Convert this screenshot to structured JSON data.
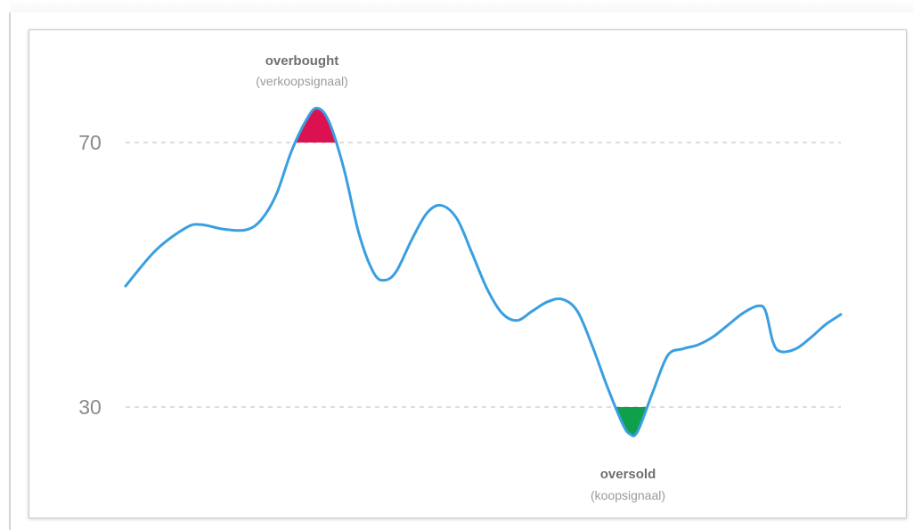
{
  "chart_data": {
    "type": "line",
    "title": "",
    "xlabel": "",
    "ylabel": "",
    "ylim": [
      15,
      80
    ],
    "reference_lines": [
      {
        "value": 70,
        "label": "70"
      },
      {
        "value": 30,
        "label": "30"
      }
    ],
    "series": [
      {
        "values": [
          [
            0,
            48.3
          ],
          [
            4,
            53.7
          ],
          [
            8,
            57.1
          ],
          [
            10,
            57.6
          ],
          [
            13,
            56.9
          ],
          [
            16,
            56.8
          ],
          [
            18,
            58.3
          ],
          [
            20,
            62.1
          ],
          [
            22,
            68.6
          ],
          [
            24,
            73.4
          ],
          [
            25.4,
            75.2
          ],
          [
            27,
            73.2
          ],
          [
            29,
            66.0
          ],
          [
            31,
            56.2
          ],
          [
            33,
            50.2
          ],
          [
            34.5,
            49.2
          ],
          [
            36,
            50.6
          ],
          [
            38,
            55.3
          ],
          [
            40,
            59.3
          ],
          [
            41.9,
            60.5
          ],
          [
            44,
            58.5
          ],
          [
            46,
            53.3
          ],
          [
            48,
            47.9
          ],
          [
            50,
            44.2
          ],
          [
            52,
            43.1
          ],
          [
            54,
            44.5
          ],
          [
            56,
            45.9
          ],
          [
            58,
            46.3
          ],
          [
            60,
            44.5
          ],
          [
            62,
            39.2
          ],
          [
            64,
            33.0
          ],
          [
            66,
            27.5
          ],
          [
            67,
            25.9
          ],
          [
            68,
            26.3
          ],
          [
            70,
            32.2
          ],
          [
            72,
            37.8
          ],
          [
            74,
            38.8
          ],
          [
            76,
            39.4
          ],
          [
            78,
            40.6
          ],
          [
            80,
            42.4
          ],
          [
            82,
            44.2
          ],
          [
            84,
            45.3
          ],
          [
            85,
            44.5
          ],
          [
            86,
            39.8
          ],
          [
            87,
            38.4
          ],
          [
            89,
            38.8
          ],
          [
            91,
            40.5
          ],
          [
            93,
            42.5
          ],
          [
            95,
            44.0
          ]
        ]
      }
    ],
    "annotations": [
      {
        "title": "overbought",
        "subtitle": "(verkoopsignaal)"
      },
      {
        "title": "oversold",
        "subtitle": "(koopsignaal)"
      }
    ],
    "colors": {
      "line": "#3a9fe0",
      "overbought_fill": "#dc1150",
      "oversold_fill": "#0ea04b",
      "reference": "#d2d2d2",
      "label": "#8a8a8a",
      "annotation_title": "#6f6f6f",
      "annotation_subtitle": "#9b9b9b"
    }
  }
}
